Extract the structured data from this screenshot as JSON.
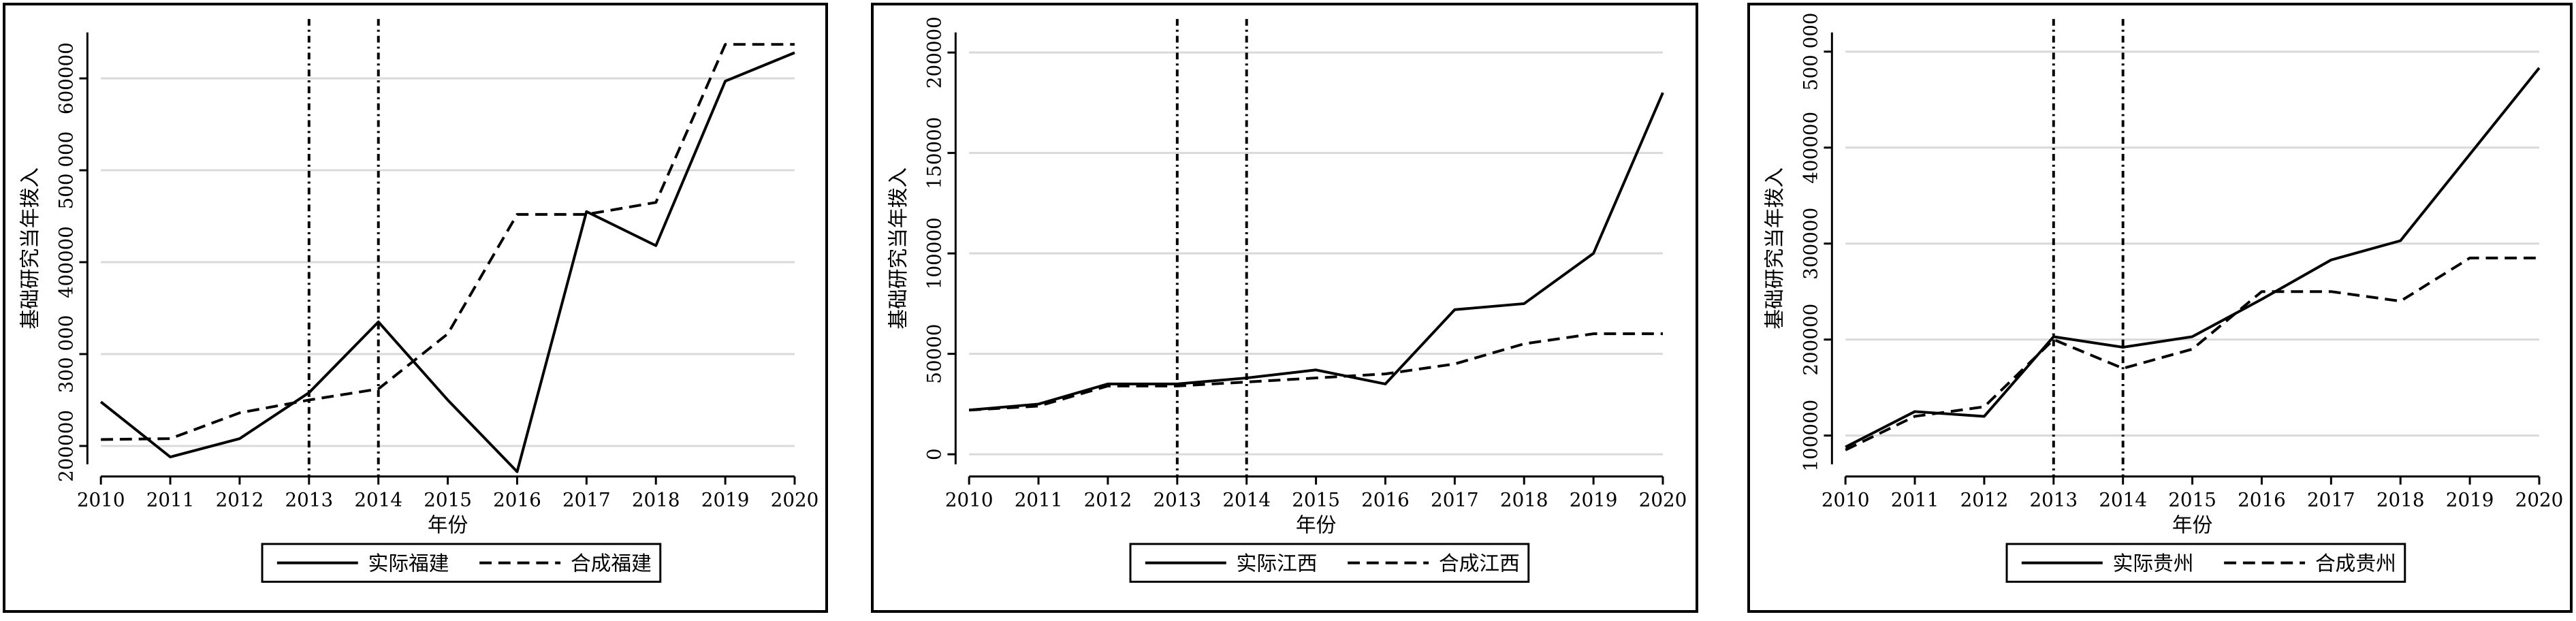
{
  "chart_data": [
    {
      "type": "line",
      "xlabel": "年份",
      "ylabel": "基础研究当年拨入",
      "x": [
        2010,
        2011,
        2012,
        2013,
        2014,
        2015,
        2016,
        2017,
        2018,
        2019,
        2020
      ],
      "xticks": [
        "2010",
        "2011",
        "2012",
        "2013",
        "2014",
        "2015",
        "2016",
        "2017",
        "2018",
        "2019",
        "2020"
      ],
      "ylim": [
        180000,
        650000
      ],
      "yticks": [
        200000,
        300000,
        400000,
        500000,
        600000
      ],
      "ytick_labels": [
        "200000",
        "300 000",
        "400000",
        "500 000",
        "600000"
      ],
      "vlines": [
        2013,
        2014
      ],
      "grid": true,
      "legend": "bottom",
      "series": [
        {
          "name": "实际福建",
          "style": "solid",
          "values": [
            248000,
            188000,
            208000,
            258000,
            335000,
            250000,
            172000,
            455000,
            418000,
            597000,
            628000
          ]
        },
        {
          "name": "合成福建",
          "style": "dashed",
          "values": [
            207000,
            208000,
            236000,
            250000,
            262000,
            322000,
            452000,
            452000,
            465000,
            637000,
            637000
          ]
        }
      ]
    },
    {
      "type": "line",
      "xlabel": "年份",
      "ylabel": "基础研究当年拨入",
      "x": [
        2010,
        2011,
        2012,
        2013,
        2014,
        2015,
        2016,
        2017,
        2018,
        2019,
        2020
      ],
      "xticks": [
        "2010",
        "2011",
        "2012",
        "2013",
        "2014",
        "2015",
        "2016",
        "2017",
        "2018",
        "2019",
        "2020"
      ],
      "ylim": [
        -5000,
        210000
      ],
      "yticks": [
        0,
        50000,
        100000,
        150000,
        200000
      ],
      "ytick_labels": [
        "0",
        "50000",
        "100000",
        "150000",
        "200000"
      ],
      "vlines": [
        2013,
        2014
      ],
      "grid": true,
      "legend": "bottom",
      "series": [
        {
          "name": "实际江西",
          "style": "solid",
          "values": [
            22000,
            25000,
            35000,
            35000,
            38000,
            42000,
            35000,
            72000,
            75000,
            100000,
            180000
          ]
        },
        {
          "name": "合成江西",
          "style": "dashed",
          "values": [
            22000,
            24000,
            34000,
            34000,
            36000,
            38000,
            40000,
            45000,
            55000,
            60000,
            60000
          ]
        }
      ]
    },
    {
      "type": "line",
      "xlabel": "年份",
      "ylabel": "基础研究当年拨入",
      "x": [
        2010,
        2011,
        2012,
        2013,
        2014,
        2015,
        2016,
        2017,
        2018,
        2019,
        2020
      ],
      "xticks": [
        "2010",
        "2011",
        "2012",
        "2013",
        "2014",
        "2015",
        "2016",
        "2017",
        "2018",
        "2019",
        "2020"
      ],
      "ylim": [
        70000,
        520000
      ],
      "yticks": [
        100000,
        200000,
        300000,
        400000,
        500000
      ],
      "ytick_labels": [
        "100000",
        "200000",
        "300000",
        "400000",
        "500 000"
      ],
      "vlines": [
        2013,
        2014
      ],
      "grid": true,
      "legend": "bottom",
      "series": [
        {
          "name": "实际贵州",
          "style": "solid",
          "values": [
            88000,
            125000,
            120000,
            203000,
            192000,
            203000,
            242000,
            283000,
            303000,
            393000,
            483000
          ]
        },
        {
          "name": "合成贵州",
          "style": "dashed",
          "values": [
            85000,
            120000,
            130000,
            200000,
            170000,
            190000,
            250000,
            250000,
            240000,
            285000,
            285000
          ]
        }
      ]
    }
  ]
}
